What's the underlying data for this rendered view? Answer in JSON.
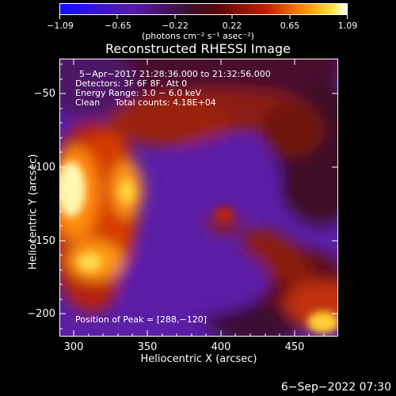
{
  "colorbar": {
    "ticks": [
      "−1.09",
      "−0.65",
      "−0.22",
      "0.22",
      "0.65",
      "1.09"
    ],
    "units": "(photons cm⁻² s⁻¹ asec⁻²)",
    "scale": "blue-purple-red-orange-yellow-white",
    "min": -1.09,
    "max": 1.09
  },
  "plot": {
    "title": "Reconstructed RHESSI Image",
    "x_label": "Heliocentric X (arcsec)",
    "y_label": "Heliocentric Y (arcsec)",
    "x_ticks": [
      "300",
      "350",
      "400",
      "450"
    ],
    "y_ticks": [
      "−50",
      "−100",
      "−150",
      "−200"
    ],
    "x_range": [
      288,
      478
    ],
    "y_range": [
      -217,
      -28
    ]
  },
  "annotations": {
    "time_range": "5−Apr−2017 21:28:36.000 to 21:32:56.000",
    "detectors": "Detectors: 3F 6F 8F, Att 0",
    "energy": "Energy Range: 3.0 − 6.0 keV",
    "method": "Clean",
    "counts": "Total counts: 4.18E+04",
    "peak": "Position of Peak = [288,−120]"
  },
  "footer": {
    "timestamp": "6−Sep−2022 07:30"
  }
}
